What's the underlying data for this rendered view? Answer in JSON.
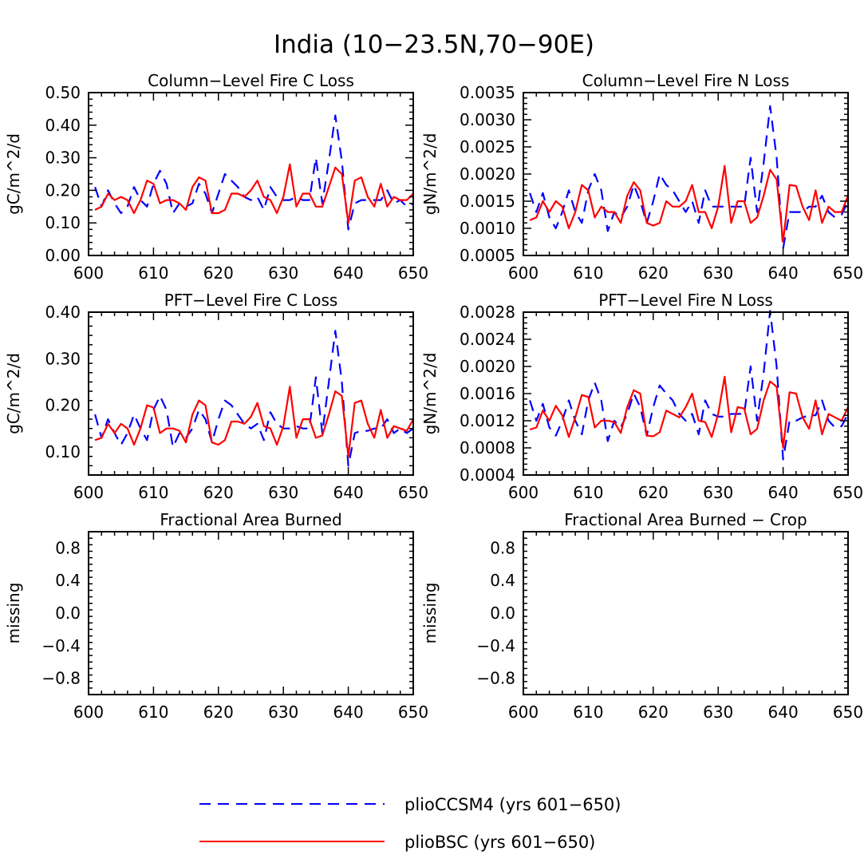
{
  "figure_title": "India (10−23.5N,70−90E)",
  "colors": {
    "plioCCSM4": "#0000ff",
    "plioBSC": "#ff0000"
  },
  "legend": [
    {
      "label": "plioCCSM4 (yrs 601−650)",
      "color": "#0000ff",
      "dash": "dashed"
    },
    {
      "label": "plioBSC (yrs 601−650)",
      "color": "#ff0000",
      "dash": "solid"
    }
  ],
  "chart_data": [
    {
      "type": "line",
      "title": "Column−Level Fire C Loss",
      "ylabel": "gC/m^2/d",
      "xlim": [
        600,
        650
      ],
      "ylim": [
        0,
        0.5
      ],
      "xticks": [
        600,
        610,
        620,
        630,
        640,
        650
      ],
      "yticks": [
        "0.00",
        "0.10",
        "0.20",
        "0.30",
        "0.40",
        "0.50"
      ],
      "x": [
        601,
        602,
        603,
        604,
        605,
        606,
        607,
        608,
        609,
        610,
        611,
        612,
        613,
        614,
        615,
        616,
        617,
        618,
        619,
        620,
        621,
        622,
        623,
        624,
        625,
        626,
        627,
        628,
        629,
        630,
        631,
        632,
        633,
        634,
        635,
        636,
        637,
        638,
        639,
        640,
        641,
        642,
        643,
        644,
        645,
        646,
        647,
        648,
        649,
        650
      ],
      "series": [
        {
          "name": "plioCCSM4",
          "values": [
            0.21,
            0.15,
            0.2,
            0.16,
            0.13,
            0.15,
            0.21,
            0.17,
            0.15,
            0.22,
            0.26,
            0.22,
            0.13,
            0.16,
            0.15,
            0.16,
            0.22,
            0.19,
            0.13,
            0.19,
            0.25,
            0.23,
            0.21,
            0.18,
            0.17,
            0.18,
            0.14,
            0.21,
            0.18,
            0.17,
            0.17,
            0.18,
            0.17,
            0.17,
            0.3,
            0.16,
            0.29,
            0.43,
            0.29,
            0.08,
            0.16,
            0.17,
            0.17,
            0.17,
            0.17,
            0.2,
            0.16,
            0.17,
            0.15,
            0.16
          ]
        },
        {
          "name": "plioBSC",
          "values": [
            0.14,
            0.15,
            0.19,
            0.17,
            0.18,
            0.17,
            0.13,
            0.17,
            0.23,
            0.22,
            0.16,
            0.17,
            0.17,
            0.16,
            0.14,
            0.21,
            0.24,
            0.23,
            0.13,
            0.13,
            0.14,
            0.19,
            0.19,
            0.18,
            0.2,
            0.23,
            0.18,
            0.17,
            0.13,
            0.18,
            0.28,
            0.15,
            0.19,
            0.19,
            0.15,
            0.15,
            0.21,
            0.27,
            0.25,
            0.1,
            0.23,
            0.24,
            0.18,
            0.15,
            0.22,
            0.15,
            0.18,
            0.17,
            0.17,
            0.19
          ]
        }
      ]
    },
    {
      "type": "line",
      "title": "Column−Level Fire N Loss",
      "ylabel": "gN/m^2/d",
      "xlim": [
        600,
        650
      ],
      "ylim": [
        0.0005,
        0.0035
      ],
      "xticks": [
        600,
        610,
        620,
        630,
        640,
        650
      ],
      "yticks": [
        "0.0005",
        "0.0010",
        "0.0015",
        "0.0020",
        "0.0025",
        "0.0030",
        "0.0035"
      ],
      "x": [
        601,
        602,
        603,
        604,
        605,
        606,
        607,
        608,
        609,
        610,
        611,
        612,
        613,
        614,
        615,
        616,
        617,
        618,
        619,
        620,
        621,
        622,
        623,
        624,
        625,
        626,
        627,
        628,
        629,
        630,
        631,
        632,
        633,
        634,
        635,
        636,
        637,
        638,
        639,
        640,
        641,
        642,
        643,
        644,
        645,
        646,
        647,
        648,
        649,
        650
      ],
      "series": [
        {
          "name": "plioCCSM4",
          "values": [
            0.00165,
            0.0013,
            0.00165,
            0.0012,
            0.001,
            0.0013,
            0.0017,
            0.0013,
            0.0011,
            0.0017,
            0.002,
            0.0017,
            0.00095,
            0.0013,
            0.0012,
            0.0014,
            0.0018,
            0.0015,
            0.0011,
            0.0015,
            0.002,
            0.0018,
            0.0017,
            0.0015,
            0.0013,
            0.0015,
            0.0011,
            0.0017,
            0.0014,
            0.0014,
            0.0014,
            0.0014,
            0.0014,
            0.0014,
            0.0023,
            0.0013,
            0.0022,
            0.00325,
            0.0023,
            0.00063,
            0.0013,
            0.0013,
            0.0013,
            0.0014,
            0.0014,
            0.0016,
            0.0013,
            0.0012,
            0.00125,
            0.0015
          ]
        },
        {
          "name": "plioBSC",
          "values": [
            0.00115,
            0.0012,
            0.0015,
            0.0013,
            0.0015,
            0.0014,
            0.001,
            0.0013,
            0.0018,
            0.0017,
            0.0012,
            0.0014,
            0.0013,
            0.0013,
            0.0011,
            0.0016,
            0.00185,
            0.0017,
            0.0011,
            0.00105,
            0.0011,
            0.0015,
            0.0014,
            0.0014,
            0.0015,
            0.0018,
            0.0013,
            0.0013,
            0.001,
            0.0014,
            0.00215,
            0.0011,
            0.0015,
            0.0015,
            0.0011,
            0.0012,
            0.0016,
            0.00208,
            0.0019,
            0.00075,
            0.0018,
            0.00178,
            0.0014,
            0.00115,
            0.0017,
            0.0011,
            0.0014,
            0.0013,
            0.0013,
            0.0016
          ]
        }
      ]
    },
    {
      "type": "line",
      "title": "PFT−Level Fire C Loss",
      "ylabel": "gC/m^2/d",
      "xlim": [
        600,
        650
      ],
      "ylim": [
        0.05,
        0.4
      ],
      "xticks": [
        600,
        610,
        620,
        630,
        640,
        650
      ],
      "yticks": [
        "0.10",
        "0.20",
        "0.30",
        "0.40"
      ],
      "x": [
        601,
        602,
        603,
        604,
        605,
        606,
        607,
        608,
        609,
        610,
        611,
        612,
        613,
        614,
        615,
        616,
        617,
        618,
        619,
        620,
        621,
        622,
        623,
        624,
        625,
        626,
        627,
        628,
        629,
        630,
        631,
        632,
        633,
        634,
        635,
        636,
        637,
        638,
        639,
        640,
        641,
        642,
        643,
        644,
        645,
        646,
        647,
        648,
        649,
        650
      ],
      "series": [
        {
          "name": "plioCCSM4",
          "values": [
            0.18,
            0.13,
            0.17,
            0.14,
            0.115,
            0.14,
            0.18,
            0.15,
            0.125,
            0.19,
            0.22,
            0.19,
            0.11,
            0.14,
            0.13,
            0.15,
            0.19,
            0.17,
            0.12,
            0.17,
            0.21,
            0.2,
            0.18,
            0.16,
            0.15,
            0.16,
            0.125,
            0.185,
            0.16,
            0.15,
            0.15,
            0.155,
            0.15,
            0.15,
            0.26,
            0.14,
            0.25,
            0.36,
            0.25,
            0.07,
            0.14,
            0.145,
            0.145,
            0.15,
            0.15,
            0.17,
            0.14,
            0.15,
            0.14,
            0.15
          ]
        },
        {
          "name": "plioBSC",
          "values": [
            0.125,
            0.13,
            0.16,
            0.14,
            0.16,
            0.15,
            0.115,
            0.15,
            0.2,
            0.195,
            0.14,
            0.15,
            0.15,
            0.145,
            0.12,
            0.18,
            0.21,
            0.2,
            0.12,
            0.115,
            0.125,
            0.165,
            0.165,
            0.16,
            0.175,
            0.205,
            0.155,
            0.15,
            0.115,
            0.155,
            0.24,
            0.13,
            0.17,
            0.17,
            0.13,
            0.135,
            0.18,
            0.23,
            0.22,
            0.09,
            0.205,
            0.21,
            0.16,
            0.13,
            0.19,
            0.13,
            0.155,
            0.15,
            0.145,
            0.17
          ]
        }
      ]
    },
    {
      "type": "line",
      "title": "PFT−Level Fire N Loss",
      "ylabel": "gN/m^2/d",
      "xlim": [
        600,
        650
      ],
      "ylim": [
        0.0004,
        0.0028
      ],
      "xticks": [
        600,
        610,
        620,
        630,
        640,
        650
      ],
      "yticks": [
        "0.0004",
        "0.0008",
        "0.0012",
        "0.0016",
        "0.0020",
        "0.0024",
        "0.0028"
      ],
      "x": [
        601,
        602,
        603,
        604,
        605,
        606,
        607,
        608,
        609,
        610,
        611,
        612,
        613,
        614,
        615,
        616,
        617,
        618,
        619,
        620,
        621,
        622,
        623,
        624,
        625,
        626,
        627,
        628,
        629,
        630,
        631,
        632,
        633,
        634,
        635,
        636,
        637,
        638,
        639,
        640,
        641,
        642,
        643,
        644,
        645,
        646,
        647,
        648,
        649,
        650
      ],
      "series": [
        {
          "name": "plioCCSM4",
          "values": [
            0.0015,
            0.0012,
            0.00145,
            0.0011,
            0.00098,
            0.0012,
            0.0015,
            0.0012,
            0.001,
            0.0015,
            0.00176,
            0.0015,
            0.0009,
            0.0012,
            0.0011,
            0.0013,
            0.0016,
            0.0014,
            0.00098,
            0.0014,
            0.00172,
            0.0016,
            0.0015,
            0.0013,
            0.0012,
            0.0013,
            0.001,
            0.0015,
            0.0013,
            0.00126,
            0.00126,
            0.0013,
            0.0013,
            0.0013,
            0.002,
            0.0012,
            0.0019,
            0.00282,
            0.002,
            0.00063,
            0.0012,
            0.0012,
            0.00125,
            0.00128,
            0.00128,
            0.0015,
            0.0012,
            0.0011,
            0.00112,
            0.0013
          ]
        },
        {
          "name": "plioBSC",
          "values": [
            0.00107,
            0.0011,
            0.00135,
            0.0012,
            0.00142,
            0.00128,
            0.00096,
            0.00125,
            0.00158,
            0.00155,
            0.0011,
            0.0012,
            0.0012,
            0.00118,
            0.00102,
            0.0014,
            0.00165,
            0.0016,
            0.00098,
            0.00097,
            0.00103,
            0.00135,
            0.0013,
            0.00125,
            0.0014,
            0.0016,
            0.0012,
            0.00118,
            0.00096,
            0.0013,
            0.00185,
            0.00103,
            0.0014,
            0.00138,
            0.001,
            0.00108,
            0.0015,
            0.00178,
            0.0017,
            0.0008,
            0.00162,
            0.0016,
            0.00125,
            0.00108,
            0.0015,
            0.001,
            0.0013,
            0.00125,
            0.0012,
            0.0014
          ]
        }
      ]
    },
    {
      "type": "line",
      "title": "Fractional Area Burned",
      "ylabel": "missing",
      "xlim": [
        600,
        650
      ],
      "ylim": [
        -1,
        1
      ],
      "xticks": [
        600,
        610,
        620,
        630,
        640,
        650
      ],
      "yticks": [
        "−0.8",
        "−0.4",
        "0.0",
        "0.4",
        "0.8"
      ],
      "x": [],
      "series": []
    },
    {
      "type": "line",
      "title": "Fractional Area Burned − Crop",
      "ylabel": "missing",
      "xlim": [
        600,
        650
      ],
      "ylim": [
        -1,
        1
      ],
      "xticks": [
        600,
        610,
        620,
        630,
        640,
        650
      ],
      "yticks": [
        "−0.8",
        "−0.4",
        "0.0",
        "0.4",
        "0.8"
      ],
      "x": [],
      "series": []
    }
  ]
}
